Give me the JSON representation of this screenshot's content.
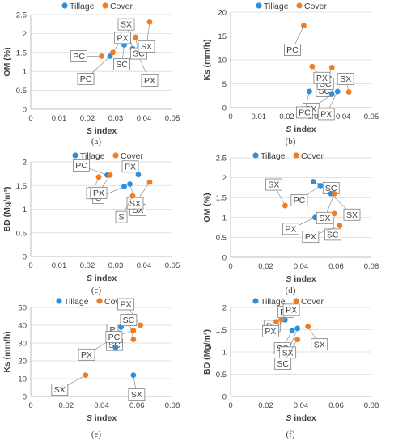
{
  "colors": {
    "tillage": "#2e8fd8",
    "cover": "#f07d22",
    "axis": "#bfbfbf",
    "grid": "#d9d9d9",
    "label_box": "#7f7f7f"
  },
  "legend": {
    "tillage": "Tillage",
    "cover": "Cover"
  },
  "chart_data": [
    {
      "type": "scatter",
      "panel": "(a)",
      "xlabel": "S index",
      "ylabel": "OM (%)",
      "xlim": [
        0,
        0.05
      ],
      "ylim": [
        0,
        2.5
      ],
      "xticks": [
        "0",
        "0.01",
        "0.02",
        "0.03",
        "0.04",
        "0.05"
      ],
      "yticks": [
        "0",
        "0.5",
        "1",
        "1.5",
        "2",
        "2.5"
      ],
      "series": [
        {
          "name": "Tillage",
          "points": [
            {
              "label": "SC",
              "x": 0.033,
              "y": 1.7
            },
            {
              "label": "SX",
              "x": 0.036,
              "y": 1.6
            },
            {
              "label": "PX",
              "x": 0.038,
              "y": 1.4
            },
            {
              "label": "PC",
              "x": 0.028,
              "y": 1.4
            }
          ]
        },
        {
          "name": "Cover",
          "points": [
            {
              "label": "SC",
              "x": 0.037,
              "y": 1.9
            },
            {
              "label": "SX",
              "x": 0.042,
              "y": 2.3
            },
            {
              "label": "PX",
              "x": 0.029,
              "y": 1.5
            },
            {
              "label": "PC",
              "x": 0.025,
              "y": 1.4
            }
          ]
        }
      ]
    },
    {
      "type": "scatter",
      "panel": "(b)",
      "xlabel": "S index",
      "ylabel": "Ks (mm/h)",
      "xlim": [
        0,
        0.05
      ],
      "ylim": [
        0,
        20
      ],
      "xticks": [
        "0",
        "0.01",
        "0.02",
        "0.03",
        "0.04",
        "0.05"
      ],
      "yticks": [
        "0",
        "5",
        "10",
        "15",
        "20"
      ],
      "series": [
        {
          "name": "Tillage",
          "points": [
            {
              "label": "SC",
              "x": 0.035,
              "y": 6.2
            },
            {
              "label": "SX",
              "x": 0.036,
              "y": 2.8
            },
            {
              "label": "PX",
              "x": 0.038,
              "y": 3.4
            },
            {
              "label": "PC",
              "x": 0.028,
              "y": 3.4
            }
          ]
        },
        {
          "name": "Cover",
          "points": [
            {
              "label": "SC",
              "x": 0.036,
              "y": 8.4
            },
            {
              "label": "SX",
              "x": 0.042,
              "y": 3.3
            },
            {
              "label": "PX",
              "x": 0.029,
              "y": 8.6
            },
            {
              "label": "PC",
              "x": 0.026,
              "y": 17.2
            }
          ]
        }
      ]
    },
    {
      "type": "scatter",
      "panel": "(c)",
      "xlabel": "S index",
      "ylabel": "BD (Mg/m³)",
      "xlim": [
        0,
        0.05
      ],
      "ylim": [
        0,
        2
      ],
      "xticks": [
        "0",
        "0.01",
        "0.02",
        "0.03",
        "0.04",
        "0.05"
      ],
      "yticks": [
        "0",
        "0.5",
        "1",
        "1.5",
        "2"
      ],
      "series": [
        {
          "name": "Tillage",
          "points": [
            {
              "label": "PX",
              "x": 0.038,
              "y": 1.73
            },
            {
              "label": "PC",
              "x": 0.027,
              "y": 1.72
            },
            {
              "label": "S",
              "x": 0.033,
              "y": 1.48
            },
            {
              "label": "SX",
              "x": 0.035,
              "y": 1.53
            }
          ]
        },
        {
          "name": "Cover",
          "points": [
            {
              "label": "P",
              "x": 0.024,
              "y": 1.68
            },
            {
              "label": "PX",
              "x": 0.028,
              "y": 1.72
            },
            {
              "label": "SX",
              "x": 0.042,
              "y": 1.57
            },
            {
              "label": "S",
              "x": 0.036,
              "y": 1.28
            }
          ]
        }
      ]
    },
    {
      "type": "scatter",
      "panel": "(d)",
      "xlabel": "S index",
      "ylabel": "OM (%)",
      "xlim": [
        0,
        0.08
      ],
      "ylim": [
        0,
        2.5
      ],
      "xticks": [
        "0",
        "0.02",
        "0.04",
        "0.06",
        "0.08"
      ],
      "yticks": [
        "0",
        "0.5",
        "1",
        "1.5",
        "2",
        "2.5"
      ],
      "series": [
        {
          "name": "Tillage",
          "points": [
            {
              "label": "SC",
              "x": 0.047,
              "y": 1.9
            },
            {
              "label": "PC",
              "x": 0.051,
              "y": 1.8
            },
            {
              "label": "SX",
              "x": 0.057,
              "y": 1.6
            },
            {
              "label": "PX",
              "x": 0.048,
              "y": 1.0
            }
          ]
        },
        {
          "name": "Cover",
          "points": [
            {
              "label": "SX",
              "x": 0.031,
              "y": 1.3
            },
            {
              "label": "SX",
              "x": 0.059,
              "y": 1.6
            },
            {
              "label": "SC",
              "x": 0.059,
              "y": 1.1
            },
            {
              "label": "PX",
              "x": 0.062,
              "y": 0.8
            }
          ]
        }
      ]
    },
    {
      "type": "scatter",
      "panel": "(e)",
      "xlabel": "S index",
      "ylabel": "Ks (mm/h)",
      "xlim": [
        0,
        0.08
      ],
      "ylim": [
        0,
        50
      ],
      "xticks": [
        "0",
        "0.02",
        "0.04",
        "0.06",
        "0.08"
      ],
      "yticks": [
        "0",
        "10",
        "20",
        "30",
        "40",
        "50"
      ],
      "series": [
        {
          "name": "Tillage",
          "points": [
            {
              "label": "SC",
              "x": 0.051,
              "y": 39
            },
            {
              "label": "PX",
              "x": 0.048,
              "y": 33.5
            },
            {
              "label": "P",
              "x": 0.048,
              "y": 27.5
            },
            {
              "label": "SX",
              "x": 0.058,
              "y": 12
            }
          ]
        },
        {
          "name": "Cover",
          "points": [
            {
              "label": "PX",
              "x": 0.062,
              "y": 40
            },
            {
              "label": "PC",
              "x": 0.058,
              "y": 37
            },
            {
              "label": "SC",
              "x": 0.058,
              "y": 32
            },
            {
              "label": "SX",
              "x": 0.031,
              "y": 12
            }
          ]
        }
      ]
    },
    {
      "type": "scatter",
      "panel": "(f)",
      "xlabel": "S index",
      "ylabel": "BD (Mg/m³)",
      "xlim": [
        0,
        0.08
      ],
      "ylim": [
        0,
        2
      ],
      "xticks": [
        "0",
        "0.02",
        "0.04",
        "0.06",
        "0.08"
      ],
      "yticks": [
        "0",
        "0.5",
        "1",
        "1.5",
        "2"
      ],
      "series": [
        {
          "name": "Tillage",
          "points": [
            {
              "label": "PC",
              "x": 0.03,
              "y": 1.73
            },
            {
              "label": "PX",
              "x": 0.031,
              "y": 1.72
            },
            {
              "label": "SC",
              "x": 0.035,
              "y": 1.48
            },
            {
              "label": "SX",
              "x": 0.038,
              "y": 1.53
            }
          ]
        },
        {
          "name": "Cover",
          "points": [
            {
              "label": "PC",
              "x": 0.026,
              "y": 1.68
            },
            {
              "label": "PX",
              "x": 0.029,
              "y": 1.73
            },
            {
              "label": "SX",
              "x": 0.044,
              "y": 1.57
            },
            {
              "label": "SC",
              "x": 0.038,
              "y": 1.28
            }
          ]
        }
      ]
    }
  ]
}
